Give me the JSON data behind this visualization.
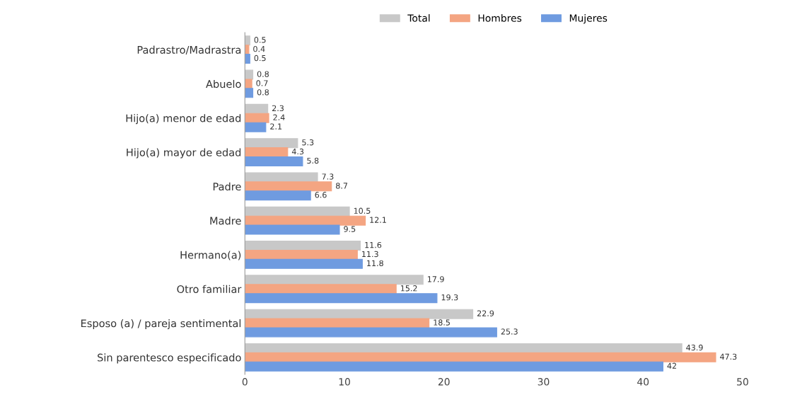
{
  "chart_data": {
    "type": "bar",
    "orientation": "horizontal",
    "categories": [
      "Padrastro/Madrastra",
      "Abuelo",
      "Hijo(a) menor de edad",
      "Hijo(a) mayor de edad",
      "Padre",
      "Madre",
      "Hermano(a)",
      "Otro familiar",
      "Esposo (a) / pareja sentimental",
      "Sin parentesco especificado"
    ],
    "series": [
      {
        "name": "Total",
        "color": "#c8c8c8",
        "values": [
          0.5,
          0.8,
          2.3,
          5.3,
          7.3,
          10.5,
          11.6,
          17.9,
          22.9,
          43.9
        ]
      },
      {
        "name": "Hombres",
        "color": "#f4a582",
        "values": [
          0.4,
          0.7,
          2.4,
          4.3,
          8.7,
          12.1,
          11.3,
          15.2,
          18.5,
          47.3
        ]
      },
      {
        "name": "Mujeres",
        "color": "#6f9be0",
        "values": [
          0.5,
          0.8,
          2.1,
          5.8,
          6.6,
          9.5,
          11.8,
          19.3,
          25.3,
          42
        ]
      }
    ],
    "xlim": [
      0,
      50
    ],
    "xticks": [
      0,
      10,
      20,
      30,
      40,
      50
    ],
    "data_labels": true,
    "legend": "top",
    "grid": false
  }
}
